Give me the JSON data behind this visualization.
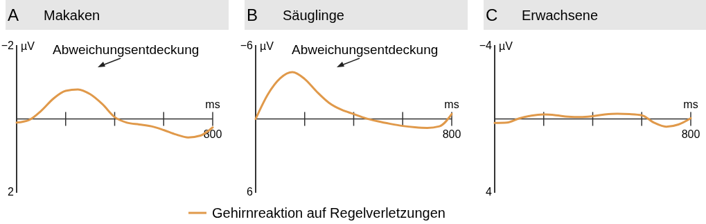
{
  "chart_data": [
    {
      "type": "line",
      "title": "Makaken",
      "annotations": [
        "A",
        "800",
        "Abweichungsentdeckung"
      ],
      "xlabel": "ms",
      "ylabel": "µV",
      "categories": [
        null,
        null,
        null,
        null,
        null,
        null,
        null,
        null,
        null,
        null,
        null,
        null,
        null,
        null,
        null,
        null,
        null
      ],
      "ylim": [
        2,
        -2
      ],
      "yticks": [
        {
          "value": -2,
          "label": "−2"
        },
        2
      ],
      "series": [
        {
          "color": "#e0994a",
          "values": [
            0.1,
            0.03,
            -0.22,
            -0.55,
            -0.76,
            -0.8,
            -0.67,
            -0.4,
            -0.05,
            0.1,
            0.15,
            0.2,
            0.3,
            0.42,
            0.5,
            0.45,
            0.23
          ]
        }
      ]
    },
    {
      "type": "line",
      "title": "Säuglinge",
      "annotations": [
        "B",
        "800",
        "Abweichungsentdeckung"
      ],
      "xlabel": "ms",
      "ylabel": "µV",
      "legend": "bottom",
      "categories": [
        null,
        null,
        null,
        null,
        null,
        null,
        null,
        null,
        null,
        null,
        null,
        null,
        null,
        null,
        null,
        null,
        null
      ],
      "ylim": [
        6,
        -6
      ],
      "yticks": [
        {
          "value": -6,
          "label": "−6"
        },
        6
      ],
      "series": [
        {
          "name": "Gehirnreaktion auf Regelverletzungen",
          "color": "#e0994a",
          "values": [
            0,
            -2.0,
            -3.3,
            -3.8,
            -3.25,
            -2.2,
            -1.3,
            -0.75,
            -0.4,
            -0.05,
            0.2,
            0.4,
            0.57,
            0.68,
            0.73,
            0.6,
            -0.4
          ]
        }
      ]
    },
    {
      "type": "line",
      "title": "Erwachsene",
      "annotations": [
        "C",
        "800"
      ],
      "xlabel": "ms",
      "ylabel": "µV",
      "categories": [
        null,
        null,
        null,
        null,
        null,
        null,
        null,
        null,
        null,
        null,
        null,
        null,
        null,
        null,
        null,
        null,
        null
      ],
      "ylim": [
        4,
        -4
      ],
      "yticks": [
        {
          "value": -4,
          "label": "−4"
        },
        4
      ],
      "series": [
        {
          "color": "#e0994a",
          "values": [
            0.22,
            0.2,
            -0.03,
            -0.18,
            -0.24,
            -0.2,
            -0.12,
            -0.1,
            -0.15,
            -0.24,
            -0.28,
            -0.26,
            -0.2,
            0.2,
            0.42,
            0.3,
            -0.04
          ]
        }
      ]
    }
  ]
}
